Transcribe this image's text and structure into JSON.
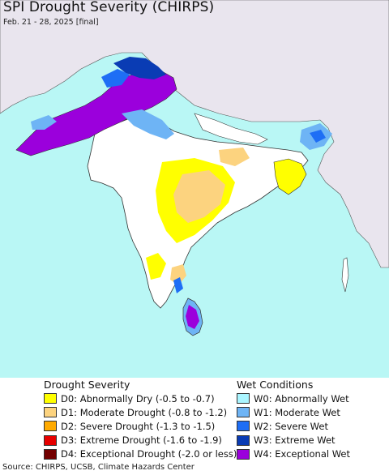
{
  "header": {
    "title": "SPI Drought Severity (CHIRPS)",
    "subtitle": "Feb. 21 - 28, 2025 [final]"
  },
  "map": {
    "region": "South Asia",
    "colors": {
      "ocean": "#b9f7f5",
      "land_outside": "#e9e5ee",
      "land_neutral": "#ffffff",
      "border": "#333333"
    }
  },
  "legend": {
    "drought": {
      "heading": "Drought Severity",
      "items": [
        {
          "label": "D0: Abnormally Dry (-0.5 to -0.7)",
          "color": "#ffff00"
        },
        {
          "label": "D1: Moderate Drought (-0.8 to -1.2)",
          "color": "#fcd37f"
        },
        {
          "label": "D2: Severe Drought (-1.3 to -1.5)",
          "color": "#ffaa00"
        },
        {
          "label": "D3: Extreme Drought (-1.6 to -1.9)",
          "color": "#e60000"
        },
        {
          "label": "D4: Exceptional Drought (-2.0 or less)",
          "color": "#730000"
        }
      ]
    },
    "wet": {
      "heading": "Wet Conditions",
      "items": [
        {
          "label": "W0: Abnormally Wet",
          "color": "#aaf5ff"
        },
        {
          "label": "W1: Moderate Wet",
          "color": "#6eb4f5"
        },
        {
          "label": "W2: Severe Wet",
          "color": "#1e6ef5"
        },
        {
          "label": "W3: Extreme Wet",
          "color": "#0a3cb4"
        },
        {
          "label": "W4: Exceptional Wet",
          "color": "#9b00dc"
        }
      ]
    }
  },
  "footer": {
    "source": "Source: CHIRPS, UCSB, Climate Hazards Center"
  }
}
